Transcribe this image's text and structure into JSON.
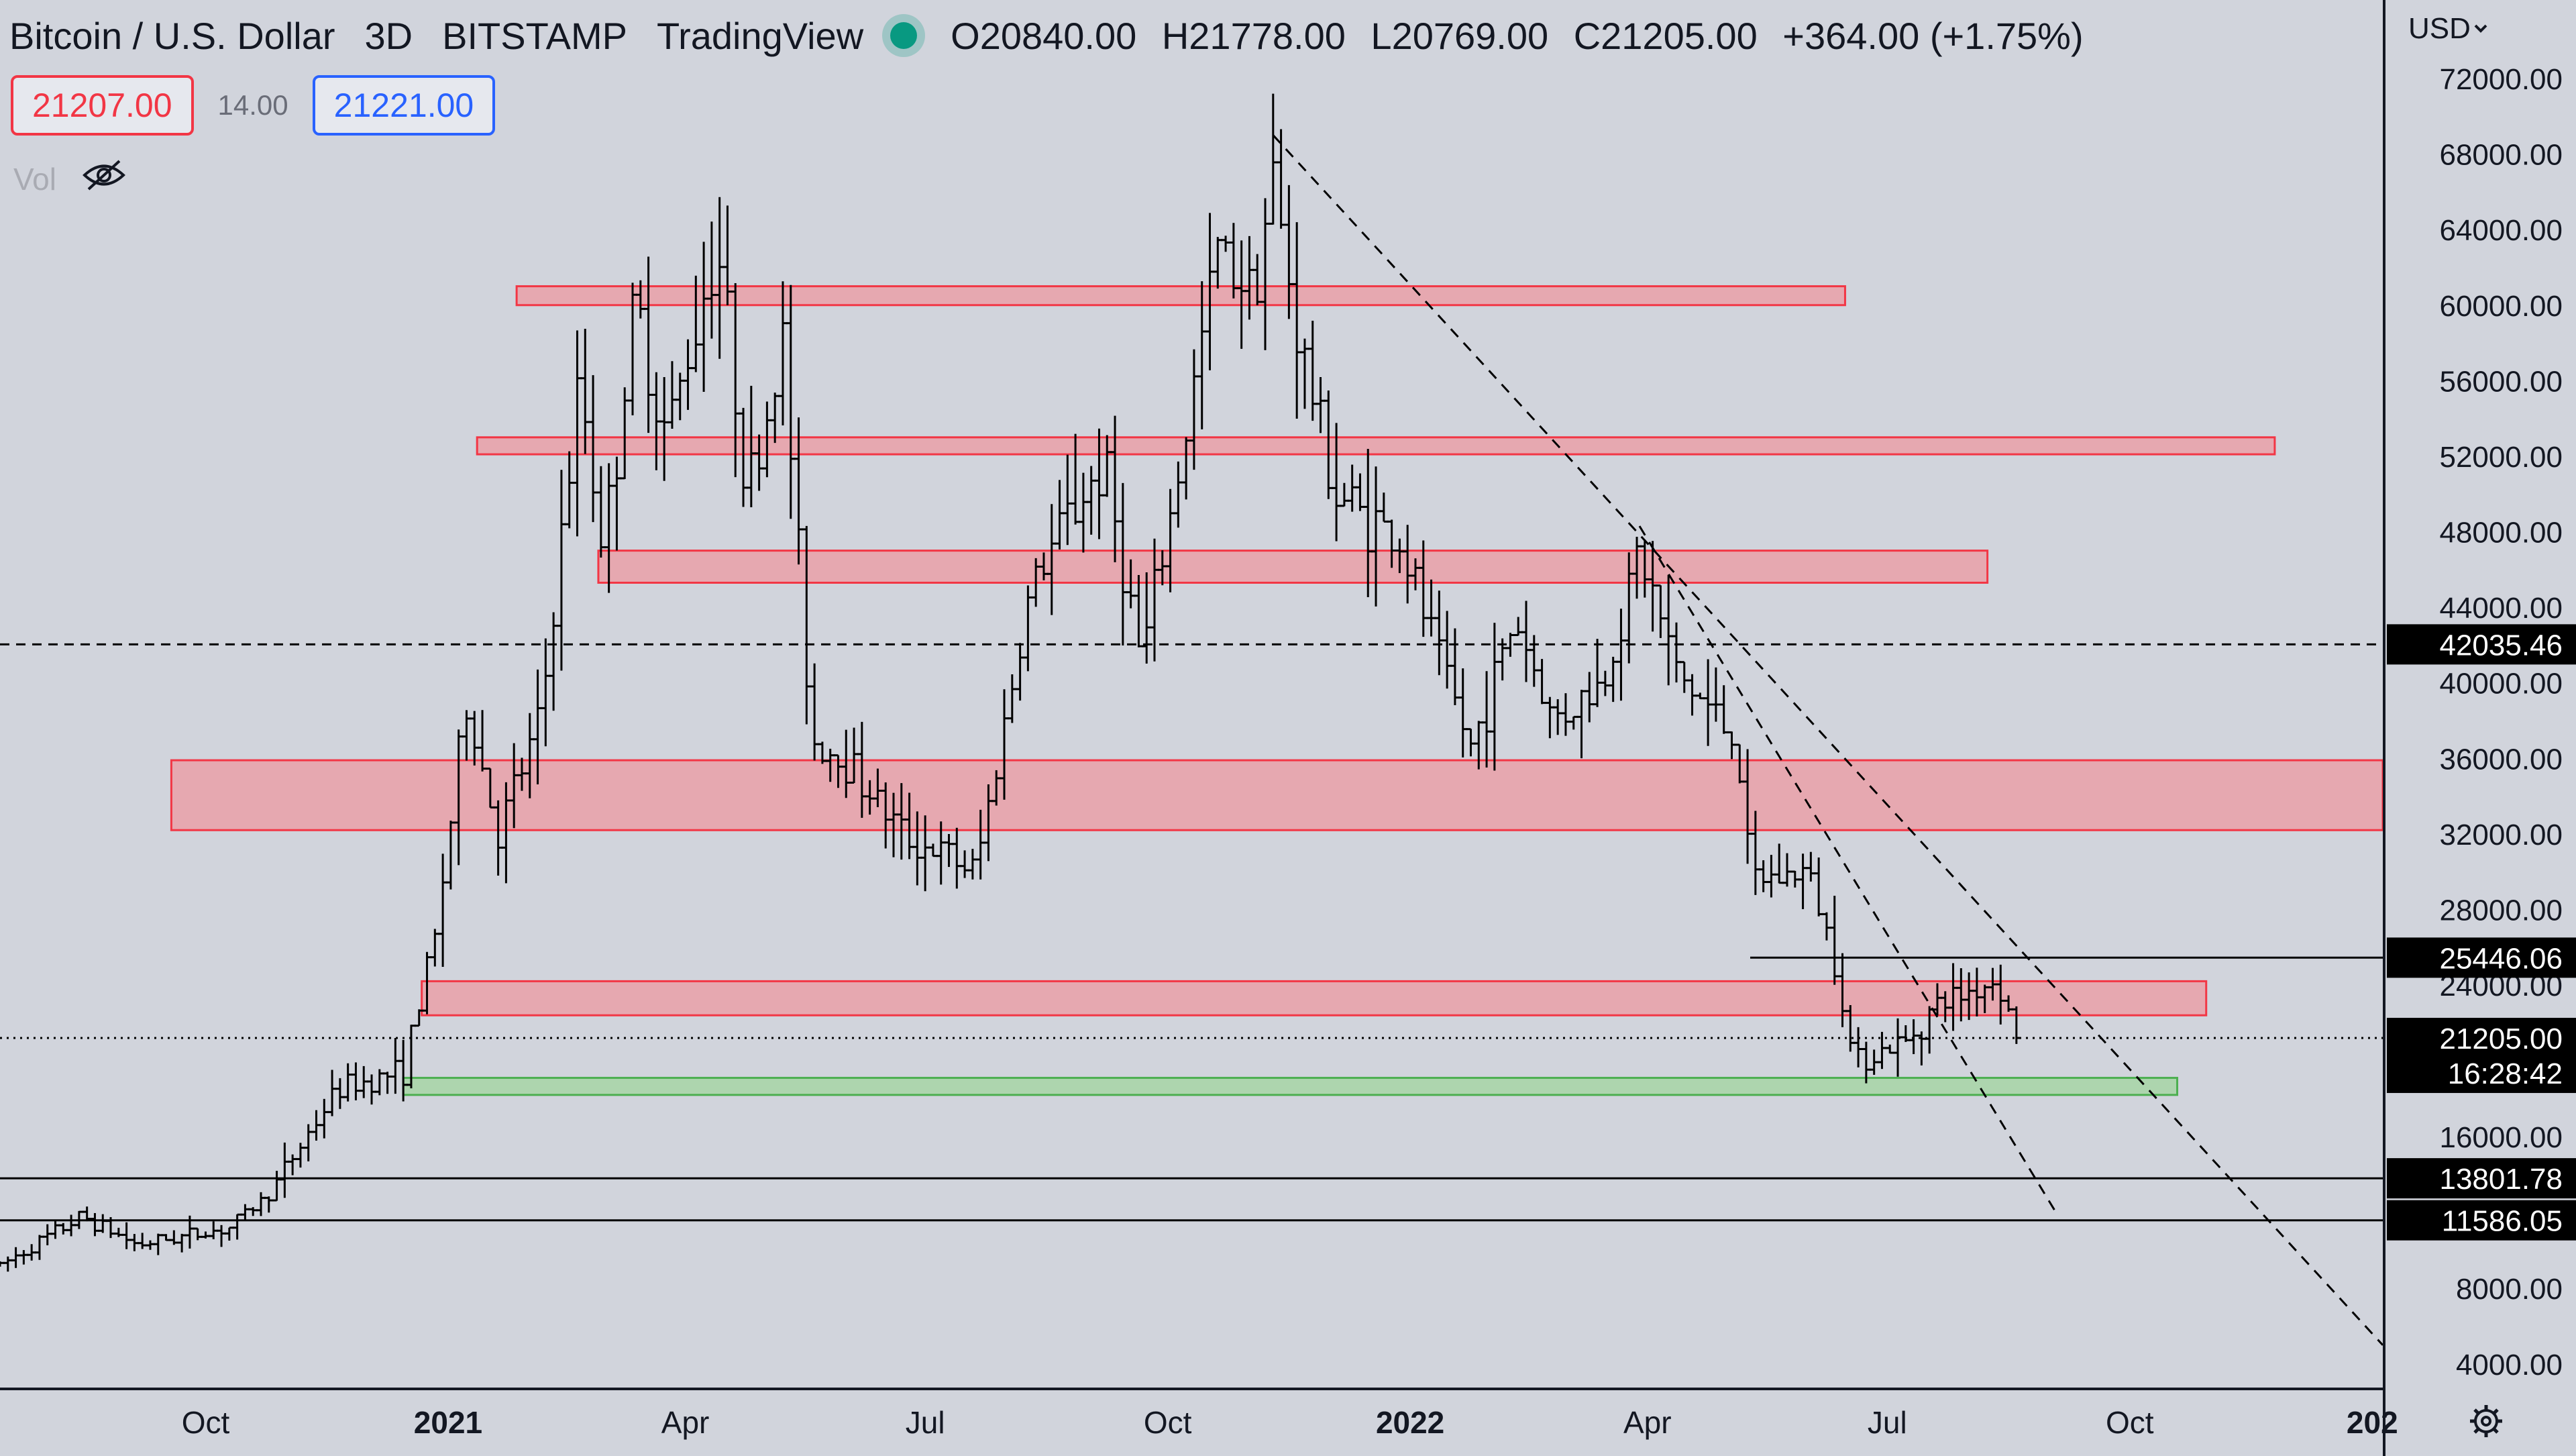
{
  "header": {
    "symbol": "Bitcoin / U.S. Dollar",
    "interval": "3D",
    "exchange": "BITSTAMP",
    "platform": "TradingView",
    "ohlc": {
      "open": "O20840.00",
      "high": "H21778.00",
      "low": "L20769.00",
      "close": "C21205.00",
      "change": "+364.00 (+1.75%)"
    }
  },
  "quotes": {
    "bid": "21207.00",
    "spread": "14.00",
    "ask": "21221.00"
  },
  "indicator": {
    "label": "Vol",
    "icon": "eye-off-icon"
  },
  "currency": "USD",
  "colors": {
    "background": "#d1d4dc",
    "resistance_fill": "#e8a3ab",
    "resistance_stroke": "#f23645",
    "support_fill": "#a8d5a8",
    "support_stroke": "#4caf50",
    "bar": "#000000",
    "price_tag": "#000000"
  },
  "chart_data": {
    "type": "ohlc",
    "title": "Bitcoin / U.S. Dollar",
    "ylim": [
      2400,
      75000
    ],
    "xlim": [
      "2020-07-15",
      "2023-01-05"
    ],
    "y_ticks": [
      "72000.00",
      "68000.00",
      "64000.00",
      "60000.00",
      "56000.00",
      "52000.00",
      "48000.00",
      "44000.00",
      "40000.00",
      "36000.00",
      "32000.00",
      "28000.00",
      "24000.00",
      "16000.00",
      "8000.00",
      "4000.00"
    ],
    "x_ticks": [
      {
        "label": "Oct",
        "date": "2020-10-01",
        "bold": false
      },
      {
        "label": "2021",
        "date": "2021-01-01",
        "bold": true
      },
      {
        "label": "Apr",
        "date": "2021-04-01",
        "bold": false
      },
      {
        "label": "Jul",
        "date": "2021-07-01",
        "bold": false
      },
      {
        "label": "Oct",
        "date": "2021-10-01",
        "bold": false
      },
      {
        "label": "2022",
        "date": "2022-01-01",
        "bold": true
      },
      {
        "label": "Apr",
        "date": "2022-04-01",
        "bold": false
      },
      {
        "label": "Jul",
        "date": "2022-07-01",
        "bold": false
      },
      {
        "label": "Oct",
        "date": "2022-10-01",
        "bold": false
      },
      {
        "label": "202",
        "date": "2023-01-01",
        "bold": true
      }
    ],
    "price_labels": [
      {
        "price": 42035.46,
        "label": "42035.46"
      },
      {
        "price": 25446.06,
        "label": "25446.06"
      },
      {
        "price": 21205.0,
        "label": "21205.00",
        "sub": "16:28:42"
      },
      {
        "price": 13801.78,
        "label": "13801.78"
      },
      {
        "price": 11586.05,
        "label": "11586.05"
      }
    ],
    "horizontal_lines": [
      {
        "price": 42035.46,
        "style": "dashed",
        "from": "2020-07-15",
        "to": "2023-01-05"
      },
      {
        "price": 25446.06,
        "style": "solid",
        "from": "2022-05-10",
        "to": "2023-01-05"
      },
      {
        "price": 21205.0,
        "style": "dotted",
        "from": "2020-07-15",
        "to": "2023-01-05"
      },
      {
        "price": 13801.78,
        "style": "solid",
        "from": "2020-07-15",
        "to": "2023-01-05"
      },
      {
        "price": 11586.05,
        "style": "solid",
        "from": "2020-07-15",
        "to": "2023-01-05"
      }
    ],
    "zones": [
      {
        "kind": "resistance",
        "from": "2021-01-27",
        "to": "2022-06-15",
        "top": 61000,
        "bottom": 60000
      },
      {
        "kind": "resistance",
        "from": "2021-01-12",
        "to": "2022-11-25",
        "top": 53000,
        "bottom": 52100
      },
      {
        "kind": "resistance",
        "from": "2021-02-27",
        "to": "2022-08-08",
        "top": 47000,
        "bottom": 45300
      },
      {
        "kind": "resistance",
        "from": "2020-09-18",
        "to": "2023-01-05",
        "top": 35900,
        "bottom": 32200
      },
      {
        "kind": "resistance",
        "from": "2020-12-22",
        "to": "2022-10-30",
        "top": 24200,
        "bottom": 22400
      },
      {
        "kind": "support",
        "from": "2020-12-15",
        "to": "2022-10-19",
        "top": 19100,
        "bottom": 18200
      }
    ],
    "trendlines": [
      {
        "from": {
          "date": "2021-11-10",
          "price": 69000
        },
        "to": {
          "date": "2023-01-05",
          "price": 5000
        }
      },
      {
        "from": {
          "date": "2022-03-29",
          "price": 48300
        },
        "to": {
          "date": "2022-09-03",
          "price": 12000
        }
      }
    ],
    "anchors": [
      {
        "date": "2020-07-15",
        "price": 9200
      },
      {
        "date": "2020-08-15",
        "price": 11800
      },
      {
        "date": "2020-09-05",
        "price": 10300
      },
      {
        "date": "2020-10-10",
        "price": 11200
      },
      {
        "date": "2020-10-25",
        "price": 13000
      },
      {
        "date": "2020-11-20",
        "price": 18500
      },
      {
        "date": "2020-12-15",
        "price": 19500
      },
      {
        "date": "2020-12-27",
        "price": 26500
      },
      {
        "date": "2021-01-08",
        "price": 39000
      },
      {
        "date": "2021-01-20",
        "price": 32000
      },
      {
        "date": "2021-02-05",
        "price": 38000
      },
      {
        "date": "2021-02-20",
        "price": 56000
      },
      {
        "date": "2021-03-01",
        "price": 47000
      },
      {
        "date": "2021-03-13",
        "price": 60000
      },
      {
        "date": "2021-03-25",
        "price": 53000
      },
      {
        "date": "2021-04-13",
        "price": 63500
      },
      {
        "date": "2021-04-25",
        "price": 50000
      },
      {
        "date": "2021-05-08",
        "price": 58000
      },
      {
        "date": "2021-05-19",
        "price": 37000
      },
      {
        "date": "2021-06-01",
        "price": 36000
      },
      {
        "date": "2021-06-22",
        "price": 32000
      },
      {
        "date": "2021-07-20",
        "price": 30000
      },
      {
        "date": "2021-08-10",
        "price": 45000
      },
      {
        "date": "2021-08-25",
        "price": 49000
      },
      {
        "date": "2021-09-07",
        "price": 51500
      },
      {
        "date": "2021-09-21",
        "price": 41000
      },
      {
        "date": "2021-10-05",
        "price": 51000
      },
      {
        "date": "2021-10-20",
        "price": 63000
      },
      {
        "date": "2021-11-02",
        "price": 61000
      },
      {
        "date": "2021-11-10",
        "price": 66500
      },
      {
        "date": "2021-11-20",
        "price": 58000
      },
      {
        "date": "2021-12-04",
        "price": 50000
      },
      {
        "date": "2021-12-28",
        "price": 47500
      },
      {
        "date": "2022-01-10",
        "price": 42000
      },
      {
        "date": "2022-01-24",
        "price": 36500
      },
      {
        "date": "2022-02-10",
        "price": 43500
      },
      {
        "date": "2022-02-24",
        "price": 38000
      },
      {
        "date": "2022-03-15",
        "price": 40000
      },
      {
        "date": "2022-03-29",
        "price": 47000
      },
      {
        "date": "2022-04-12",
        "price": 40500
      },
      {
        "date": "2022-05-05",
        "price": 37000
      },
      {
        "date": "2022-05-10",
        "price": 29500
      },
      {
        "date": "2022-06-01",
        "price": 30000
      },
      {
        "date": "2022-06-12",
        "price": 25000
      },
      {
        "date": "2022-06-18",
        "price": 20000
      },
      {
        "date": "2022-07-08",
        "price": 21000
      },
      {
        "date": "2022-07-20",
        "price": 23000
      },
      {
        "date": "2022-08-12",
        "price": 24300
      },
      {
        "date": "2022-08-19",
        "price": 21205
      }
    ]
  }
}
